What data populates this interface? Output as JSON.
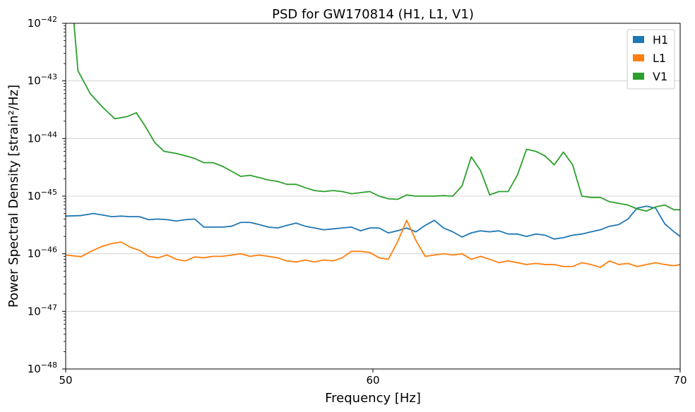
{
  "chart_data": {
    "type": "line",
    "title": "PSD for GW170814 (H1, L1, V1)",
    "xlabel": "Frequency [Hz]",
    "ylabel": "Power Spectral Density [strain²/Hz]",
    "xlim": [
      50,
      70
    ],
    "ylim": [
      1e-48,
      1e-42
    ],
    "yscale": "log",
    "grid": "y-major",
    "legend_position": "top-right",
    "x_ticks": [
      50,
      60,
      70
    ],
    "x_tick_labels": [
      "50",
      "60",
      "70"
    ],
    "y_ticks": [
      {
        "value": 1e-48,
        "base": "10",
        "exp": "−48"
      },
      {
        "value": 1e-47,
        "base": "10",
        "exp": "−47"
      },
      {
        "value": 1e-46,
        "base": "10",
        "exp": "−46"
      },
      {
        "value": 1e-45,
        "base": "10",
        "exp": "−45"
      },
      {
        "value": 1e-44,
        "base": "10",
        "exp": "−44"
      },
      {
        "value": 1e-43,
        "base": "10",
        "exp": "−43"
      },
      {
        "value": 1e-42,
        "base": "10",
        "exp": "−42"
      }
    ],
    "series": [
      {
        "name": "H1",
        "color": "#1f77b4",
        "points": [
          [
            50.0,
            4.5e-46
          ],
          [
            50.5,
            4.6e-46
          ],
          [
            50.9,
            5e-46
          ],
          [
            51.2,
            4.7e-46
          ],
          [
            51.5,
            4.4e-46
          ],
          [
            51.8,
            4.5e-46
          ],
          [
            52.1,
            4.4e-46
          ],
          [
            52.4,
            4.4e-46
          ],
          [
            52.7,
            3.9e-46
          ],
          [
            53.0,
            4e-46
          ],
          [
            53.3,
            3.9e-46
          ],
          [
            53.6,
            3.7e-46
          ],
          [
            53.9,
            3.9e-46
          ],
          [
            54.2,
            4e-46
          ],
          [
            54.5,
            2.9e-46
          ],
          [
            54.8,
            2.9e-46
          ],
          [
            55.1,
            2.9e-46
          ],
          [
            55.4,
            3e-46
          ],
          [
            55.7,
            3.5e-46
          ],
          [
            56.0,
            3.5e-46
          ],
          [
            56.3,
            3.2e-46
          ],
          [
            56.6,
            2.9e-46
          ],
          [
            56.9,
            2.8e-46
          ],
          [
            57.2,
            3.1e-46
          ],
          [
            57.5,
            3.4e-46
          ],
          [
            57.8,
            3e-46
          ],
          [
            58.1,
            2.8e-46
          ],
          [
            58.4,
            2.6e-46
          ],
          [
            58.7,
            2.7e-46
          ],
          [
            59.0,
            2.8e-46
          ],
          [
            59.3,
            2.9e-46
          ],
          [
            59.6,
            2.5e-46
          ],
          [
            59.9,
            2.8e-46
          ],
          [
            60.2,
            2.8e-46
          ],
          [
            60.5,
            2.3e-46
          ],
          [
            60.8,
            2.5e-46
          ],
          [
            61.1,
            2.8e-46
          ],
          [
            61.4,
            2.4e-46
          ],
          [
            61.7,
            3.1e-46
          ],
          [
            62.0,
            3.8e-46
          ],
          [
            62.3,
            2.8e-46
          ],
          [
            62.6,
            2.4e-46
          ],
          [
            62.9,
            1.95e-46
          ],
          [
            63.2,
            2.3e-46
          ],
          [
            63.5,
            2.5e-46
          ],
          [
            63.8,
            2.4e-46
          ],
          [
            64.1,
            2.5e-46
          ],
          [
            64.4,
            2.2e-46
          ],
          [
            64.7,
            2.2e-46
          ],
          [
            65.0,
            2e-46
          ],
          [
            65.3,
            2.2e-46
          ],
          [
            65.6,
            2.1e-46
          ],
          [
            65.9,
            1.8e-46
          ],
          [
            66.2,
            1.9e-46
          ],
          [
            66.5,
            2.1e-46
          ],
          [
            66.8,
            2.2e-46
          ],
          [
            67.1,
            2.4e-46
          ],
          [
            67.4,
            2.6e-46
          ],
          [
            67.7,
            3e-46
          ],
          [
            68.0,
            3.2e-46
          ],
          [
            68.3,
            4e-46
          ],
          [
            68.6,
            6.2e-46
          ],
          [
            68.9,
            6.7e-46
          ],
          [
            69.2,
            6.2e-46
          ],
          [
            69.5,
            3.3e-46
          ],
          [
            69.8,
            2.4e-46
          ],
          [
            70.0,
            2e-46
          ]
        ]
      },
      {
        "name": "L1",
        "color": "#ff7f0e",
        "points": [
          [
            50.0,
            9.5e-47
          ],
          [
            50.5,
            8.9e-47
          ],
          [
            50.9,
            1.15e-46
          ],
          [
            51.2,
            1.35e-46
          ],
          [
            51.5,
            1.5e-46
          ],
          [
            51.8,
            1.6e-46
          ],
          [
            52.1,
            1.3e-46
          ],
          [
            52.4,
            1.15e-46
          ],
          [
            52.7,
            9e-47
          ],
          [
            53.0,
            8.5e-47
          ],
          [
            53.3,
            9.5e-47
          ],
          [
            53.6,
            8e-47
          ],
          [
            53.9,
            7.5e-47
          ],
          [
            54.2,
            8.8e-47
          ],
          [
            54.5,
            8.5e-47
          ],
          [
            54.8,
            9e-47
          ],
          [
            55.1,
            9e-47
          ],
          [
            55.4,
            9.5e-47
          ],
          [
            55.7,
            1e-46
          ],
          [
            56.0,
            9e-47
          ],
          [
            56.3,
            9.5e-47
          ],
          [
            56.6,
            9e-47
          ],
          [
            56.9,
            8.5e-47
          ],
          [
            57.2,
            7.5e-47
          ],
          [
            57.5,
            7.2e-47
          ],
          [
            57.8,
            7.8e-47
          ],
          [
            58.1,
            7.2e-47
          ],
          [
            58.4,
            7.8e-47
          ],
          [
            58.7,
            7.5e-47
          ],
          [
            59.0,
            8.5e-47
          ],
          [
            59.3,
            1.1e-46
          ],
          [
            59.6,
            1.1e-46
          ],
          [
            59.9,
            1.05e-46
          ],
          [
            60.2,
            8.5e-47
          ],
          [
            60.5,
            8e-47
          ],
          [
            60.8,
            1.6e-46
          ],
          [
            61.1,
            3.8e-46
          ],
          [
            61.4,
            1.7e-46
          ],
          [
            61.7,
            9e-47
          ],
          [
            62.0,
            9.5e-47
          ],
          [
            62.3,
            1e-46
          ],
          [
            62.6,
            9.5e-47
          ],
          [
            62.9,
            1e-46
          ],
          [
            63.2,
            8e-47
          ],
          [
            63.5,
            9e-47
          ],
          [
            63.8,
            8e-47
          ],
          [
            64.1,
            7e-47
          ],
          [
            64.4,
            7.5e-47
          ],
          [
            64.7,
            7e-47
          ],
          [
            65.0,
            6.5e-47
          ],
          [
            65.3,
            6.8e-47
          ],
          [
            65.6,
            6.5e-47
          ],
          [
            65.9,
            6.5e-47
          ],
          [
            66.2,
            6e-47
          ],
          [
            66.5,
            6e-47
          ],
          [
            66.8,
            7e-47
          ],
          [
            67.1,
            6.5e-47
          ],
          [
            67.4,
            5.8e-47
          ],
          [
            67.7,
            7.5e-47
          ],
          [
            68.0,
            6.5e-47
          ],
          [
            68.3,
            6.8e-47
          ],
          [
            68.6,
            6e-47
          ],
          [
            68.9,
            6.5e-47
          ],
          [
            69.2,
            7e-47
          ],
          [
            69.5,
            6.5e-47
          ],
          [
            69.8,
            6.2e-47
          ],
          [
            70.0,
            6.5e-47
          ]
        ]
      },
      {
        "name": "V1",
        "color": "#2ca02c",
        "points": [
          [
            50.0,
            5e-41
          ],
          [
            50.4,
            1.5e-43
          ],
          [
            50.8,
            6e-44
          ],
          [
            51.2,
            3.5e-44
          ],
          [
            51.6,
            2.2e-44
          ],
          [
            52.0,
            2.4e-44
          ],
          [
            52.3,
            2.8e-44
          ],
          [
            52.6,
            1.6e-44
          ],
          [
            52.9,
            8.5e-45
          ],
          [
            53.2,
            6e-45
          ],
          [
            53.6,
            5.5e-45
          ],
          [
            53.9,
            5e-45
          ],
          [
            54.2,
            4.5e-45
          ],
          [
            54.5,
            3.8e-45
          ],
          [
            54.8,
            3.8e-45
          ],
          [
            55.1,
            3.3e-45
          ],
          [
            55.4,
            2.7e-45
          ],
          [
            55.7,
            2.2e-45
          ],
          [
            56.0,
            2.3e-45
          ],
          [
            56.3,
            2.1e-45
          ],
          [
            56.6,
            1.9e-45
          ],
          [
            56.9,
            1.8e-45
          ],
          [
            57.2,
            1.6e-45
          ],
          [
            57.5,
            1.6e-45
          ],
          [
            57.8,
            1.4e-45
          ],
          [
            58.1,
            1.25e-45
          ],
          [
            58.4,
            1.2e-45
          ],
          [
            58.7,
            1.25e-45
          ],
          [
            59.0,
            1.2e-45
          ],
          [
            59.3,
            1.1e-45
          ],
          [
            59.6,
            1.15e-45
          ],
          [
            59.9,
            1.2e-45
          ],
          [
            60.2,
            1e-45
          ],
          [
            60.5,
            9e-46
          ],
          [
            60.8,
            8.8e-46
          ],
          [
            61.1,
            1.05e-45
          ],
          [
            61.4,
            1e-45
          ],
          [
            61.7,
            1e-45
          ],
          [
            62.0,
            1e-45
          ],
          [
            62.3,
            1.02e-45
          ],
          [
            62.6,
            1e-45
          ],
          [
            62.9,
            1.5e-45
          ],
          [
            63.2,
            4.8e-45
          ],
          [
            63.5,
            2.8e-45
          ],
          [
            63.8,
            1.05e-45
          ],
          [
            64.1,
            1.2e-45
          ],
          [
            64.4,
            1.2e-45
          ],
          [
            64.7,
            2.3e-45
          ],
          [
            65.0,
            6.5e-45
          ],
          [
            65.3,
            6e-45
          ],
          [
            65.6,
            5e-45
          ],
          [
            65.9,
            3.5e-45
          ],
          [
            66.2,
            5.8e-45
          ],
          [
            66.5,
            3.5e-45
          ],
          [
            66.8,
            1e-45
          ],
          [
            67.1,
            9.5e-46
          ],
          [
            67.4,
            9.5e-46
          ],
          [
            67.7,
            8e-46
          ],
          [
            68.0,
            7.5e-46
          ],
          [
            68.3,
            7e-46
          ],
          [
            68.6,
            6e-46
          ],
          [
            68.9,
            5.5e-46
          ],
          [
            69.2,
            6.5e-46
          ],
          [
            69.5,
            7e-46
          ],
          [
            69.8,
            5.8e-46
          ],
          [
            70.0,
            5.8e-46
          ]
        ]
      }
    ]
  }
}
